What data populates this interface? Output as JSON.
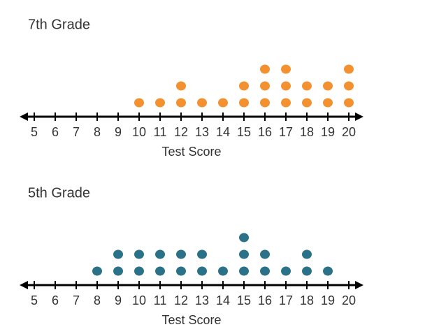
{
  "chart_data": [
    {
      "type": "dot",
      "title": "7th Grade",
      "x_label": "Test Score",
      "x": [
        10,
        11,
        12,
        13,
        14,
        15,
        16,
        17,
        18,
        19,
        20
      ],
      "values": [
        1,
        1,
        2,
        1,
        1,
        2,
        3,
        3,
        2,
        2,
        3
      ],
      "color": "#f39130",
      "xlim": [
        4.3,
        20.7
      ],
      "xticks": [
        5,
        6,
        7,
        8,
        9,
        10,
        11,
        12,
        13,
        14,
        15,
        16,
        17,
        18,
        19,
        20
      ]
    },
    {
      "type": "dot",
      "title": "5th Grade",
      "x_label": "Test Score",
      "x": [
        8,
        9,
        10,
        11,
        12,
        13,
        14,
        15,
        16,
        17,
        18,
        19
      ],
      "values": [
        1,
        2,
        2,
        2,
        2,
        2,
        1,
        3,
        2,
        1,
        2,
        1
      ],
      "color": "#2b7288",
      "xlim": [
        4.3,
        20.7
      ],
      "xticks": [
        5,
        6,
        7,
        8,
        9,
        10,
        11,
        12,
        13,
        14,
        15,
        16,
        17,
        18,
        19,
        20
      ]
    }
  ]
}
